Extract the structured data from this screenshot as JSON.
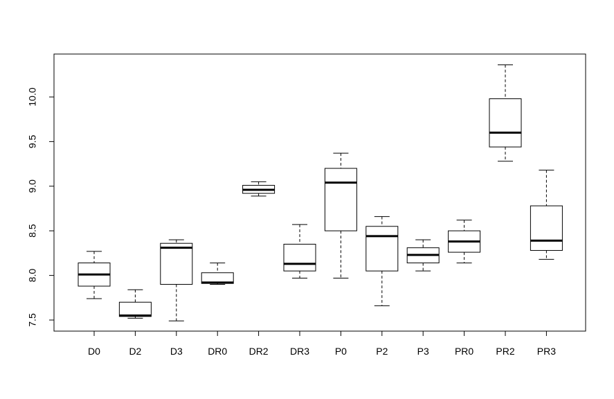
{
  "chart_data": {
    "type": "boxplot",
    "title": "",
    "xlabel": "",
    "ylabel": "",
    "ylim": [
      7.37,
      10.5
    ],
    "yticks": [
      "7.5",
      "8.0",
      "8.5",
      "9.0",
      "9.5",
      "10.0"
    ],
    "grid": false,
    "colors": {
      "box_fill": "#ffffff",
      "stroke": "#000000"
    },
    "boxes": [
      {
        "label": "D0",
        "min": 7.74,
        "q1": 7.88,
        "median": 8.01,
        "q3": 8.14,
        "max": 8.27
      },
      {
        "label": "D2",
        "min": 7.52,
        "q1": 7.54,
        "median": 7.55,
        "q3": 7.7,
        "max": 7.84
      },
      {
        "label": "D3",
        "min": 7.49,
        "q1": 7.9,
        "median": 8.31,
        "q3": 8.36,
        "max": 8.4
      },
      {
        "label": "DR0",
        "min": 7.9,
        "q1": 7.91,
        "median": 7.92,
        "q3": 8.03,
        "max": 8.14
      },
      {
        "label": "DR2",
        "min": 8.89,
        "q1": 8.92,
        "median": 8.96,
        "q3": 9.01,
        "max": 9.05
      },
      {
        "label": "DR3",
        "min": 7.97,
        "q1": 8.05,
        "median": 8.13,
        "q3": 8.35,
        "max": 8.57
      },
      {
        "label": "P0",
        "min": 7.97,
        "q1": 8.5,
        "median": 9.04,
        "q3": 9.2,
        "max": 9.37
      },
      {
        "label": "P2",
        "min": 7.66,
        "q1": 8.05,
        "median": 8.44,
        "q3": 8.55,
        "max": 8.66
      },
      {
        "label": "P3",
        "min": 8.05,
        "q1": 8.14,
        "median": 8.23,
        "q3": 8.31,
        "max": 8.4
      },
      {
        "label": "PR0",
        "min": 8.14,
        "q1": 8.26,
        "median": 8.38,
        "q3": 8.5,
        "max": 8.62
      },
      {
        "label": "PR2",
        "min": 9.28,
        "q1": 9.44,
        "median": 9.6,
        "q3": 9.98,
        "max": 10.36
      },
      {
        "label": "PR3",
        "min": 8.18,
        "q1": 8.28,
        "median": 8.39,
        "q3": 8.78,
        "max": 9.18
      }
    ]
  }
}
